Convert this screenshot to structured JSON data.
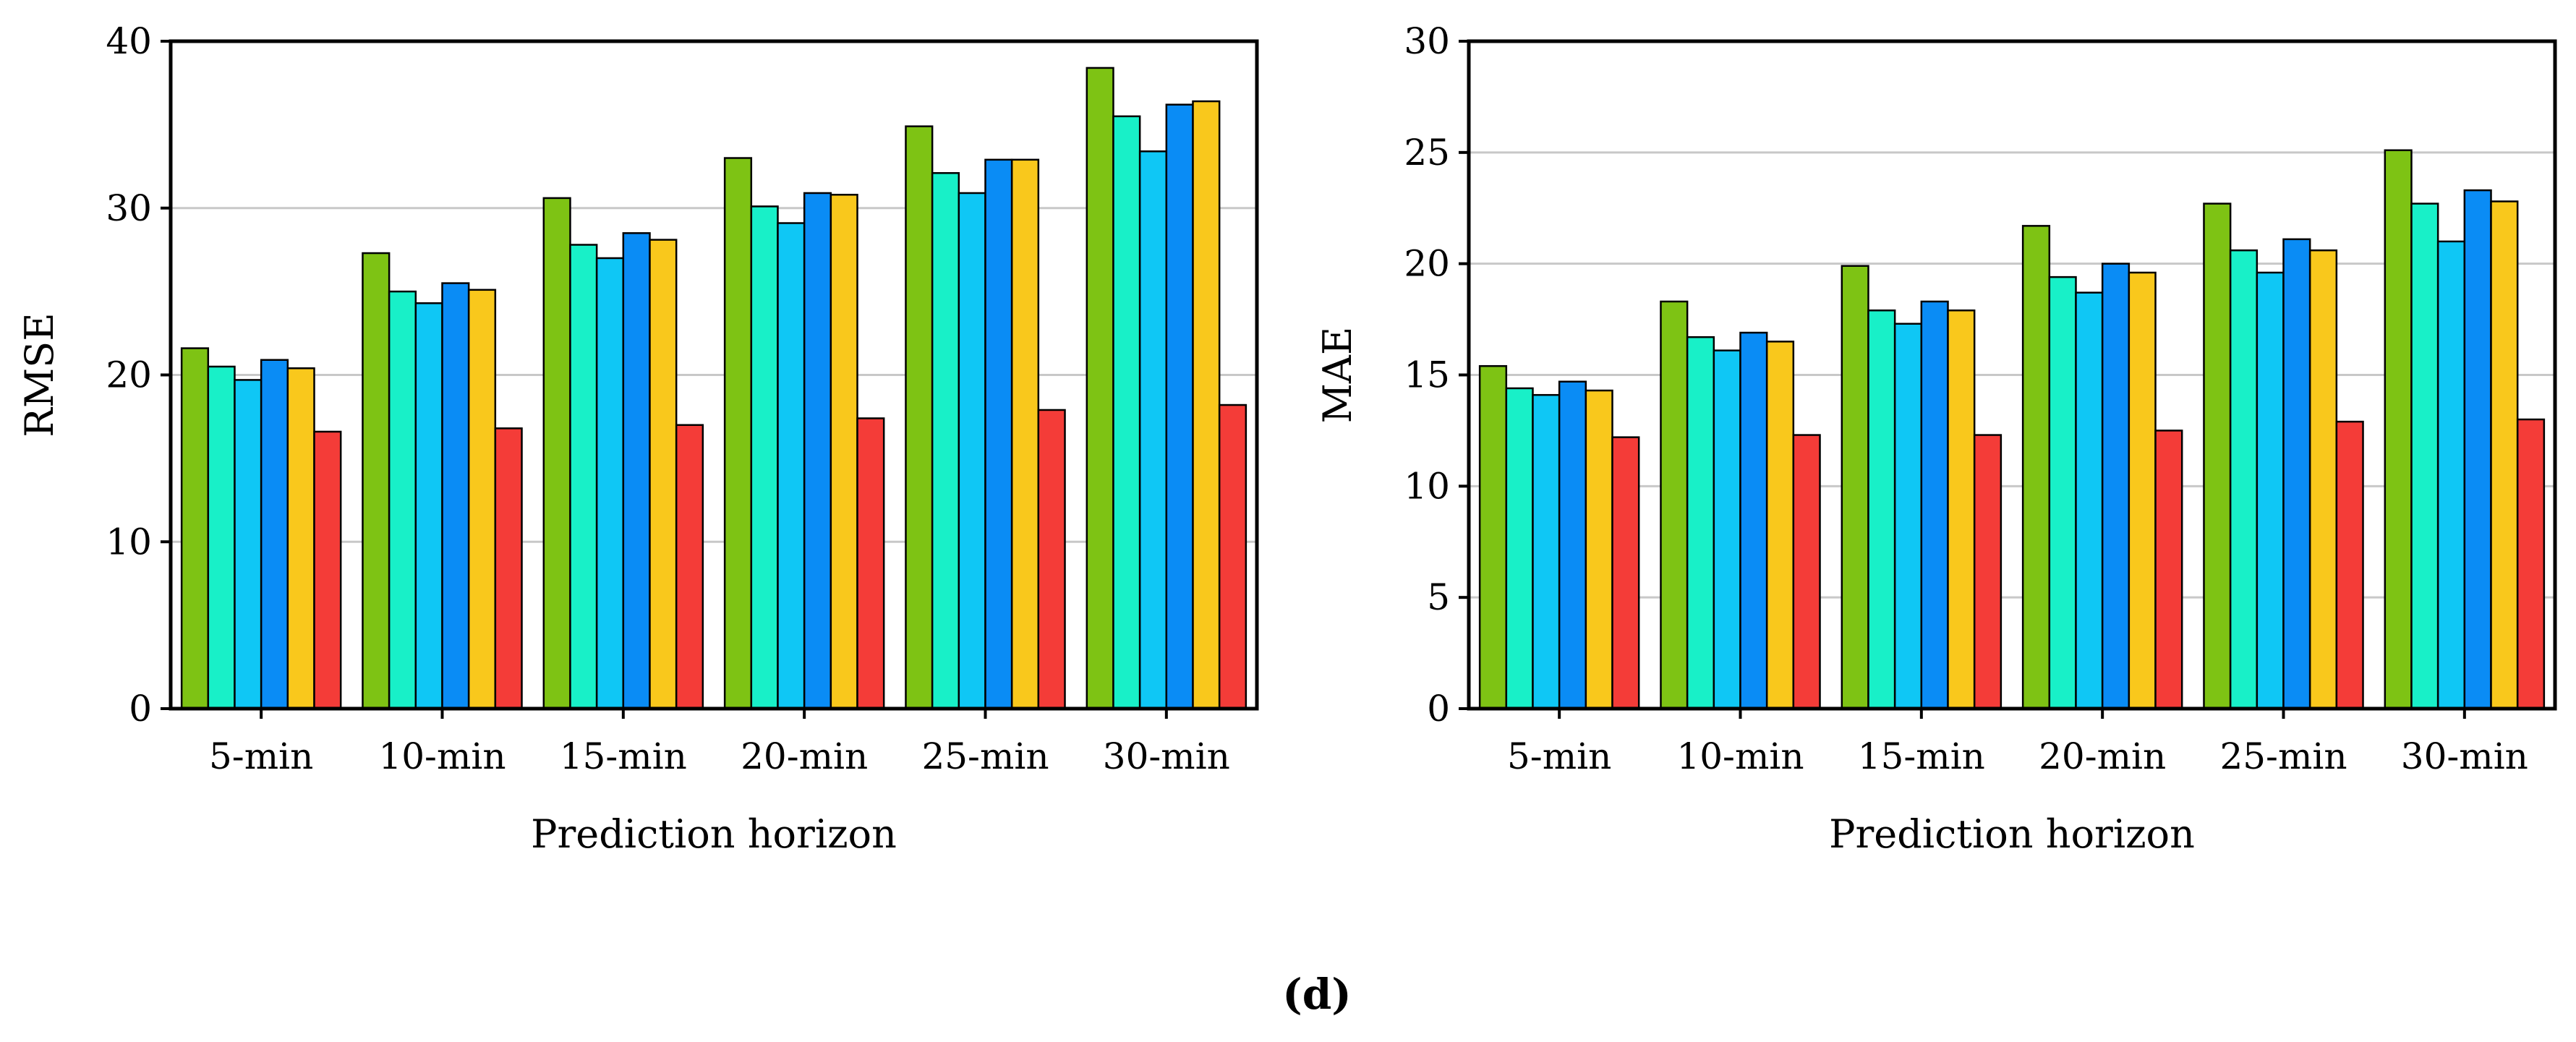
{
  "figure": {
    "panel_label": "(d)",
    "series_colors": [
      "#7ec314",
      "#18f0c8",
      "#0fc7f5",
      "#0a8cf5",
      "#f9c81c",
      "#f43c38"
    ]
  },
  "chart_data": [
    {
      "type": "bar",
      "title": "",
      "xlabel": "Prediction horizon",
      "ylabel": "RMSE",
      "ylim": [
        0,
        40
      ],
      "yticks": [
        0,
        10,
        20,
        30,
        40
      ],
      "grid": "y",
      "categories": [
        "5-min",
        "10-min",
        "15-min",
        "20-min",
        "25-min",
        "30-min"
      ],
      "series": [
        {
          "name": "series 1",
          "values": [
            21.6,
            27.3,
            30.6,
            33.0,
            34.9,
            38.4
          ]
        },
        {
          "name": "series 2",
          "values": [
            20.5,
            25.0,
            27.8,
            30.1,
            32.1,
            35.5
          ]
        },
        {
          "name": "series 3",
          "values": [
            19.7,
            24.3,
            27.0,
            29.1,
            30.9,
            33.4
          ]
        },
        {
          "name": "series 4",
          "values": [
            20.9,
            25.5,
            28.5,
            30.9,
            32.9,
            36.2
          ]
        },
        {
          "name": "series 5",
          "values": [
            20.4,
            25.1,
            28.1,
            30.8,
            32.9,
            36.4
          ]
        },
        {
          "name": "series 6",
          "values": [
            16.6,
            16.8,
            17.0,
            17.4,
            17.9,
            18.2
          ]
        }
      ]
    },
    {
      "type": "bar",
      "title": "",
      "xlabel": "Prediction horizon",
      "ylabel": "MAE",
      "ylim": [
        0,
        30
      ],
      "yticks": [
        0,
        5,
        10,
        15,
        20,
        25,
        30
      ],
      "grid": "y",
      "categories": [
        "5-min",
        "10-min",
        "15-min",
        "20-min",
        "25-min",
        "30-min"
      ],
      "series": [
        {
          "name": "series 1",
          "values": [
            15.4,
            18.3,
            19.9,
            21.7,
            22.7,
            25.1
          ]
        },
        {
          "name": "series 2",
          "values": [
            14.4,
            16.7,
            17.9,
            19.4,
            20.6,
            22.7
          ]
        },
        {
          "name": "series 3",
          "values": [
            14.1,
            16.1,
            17.3,
            18.7,
            19.6,
            21.0
          ]
        },
        {
          "name": "series 4",
          "values": [
            14.7,
            16.9,
            18.3,
            20.0,
            21.1,
            23.3
          ]
        },
        {
          "name": "series 5",
          "values": [
            14.3,
            16.5,
            17.9,
            19.6,
            20.6,
            22.8
          ]
        },
        {
          "name": "series 6",
          "values": [
            12.2,
            12.3,
            12.3,
            12.5,
            12.9,
            13.0
          ]
        }
      ]
    }
  ]
}
